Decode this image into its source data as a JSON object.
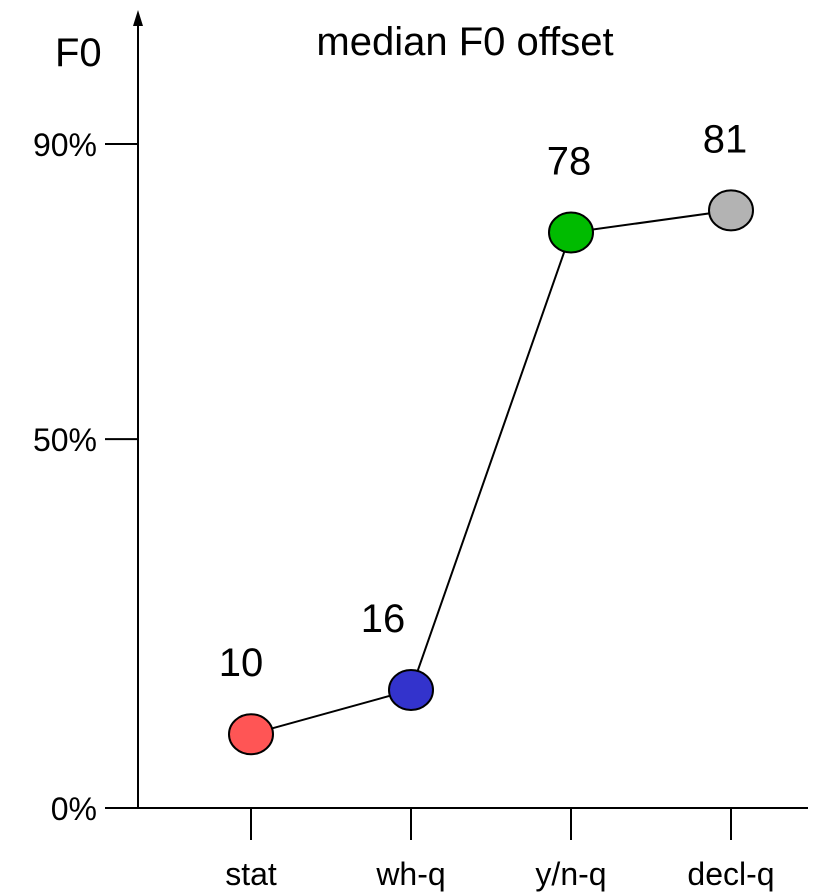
{
  "chart_data": {
    "type": "line",
    "title": "median F0 offset",
    "ylabel": "F0",
    "xlabel": "",
    "categories": [
      "stat",
      "wh-q",
      "y/n-q",
      "decl-q"
    ],
    "series": [
      {
        "values": [
          10,
          16,
          78,
          81
        ],
        "colors": [
          "#ff5555",
          "#3333cc",
          "#00bb00",
          "#b3b3b3"
        ]
      }
    ],
    "ylim": [
      0,
      90
    ],
    "yticks": [
      {
        "value": 0,
        "label": "0%"
      },
      {
        "value": 50,
        "label": "50%"
      },
      {
        "value": 90,
        "label": "90%"
      }
    ],
    "data_labels": [
      "10",
      "16",
      "78",
      "81"
    ],
    "grid": false,
    "legend": "none"
  }
}
